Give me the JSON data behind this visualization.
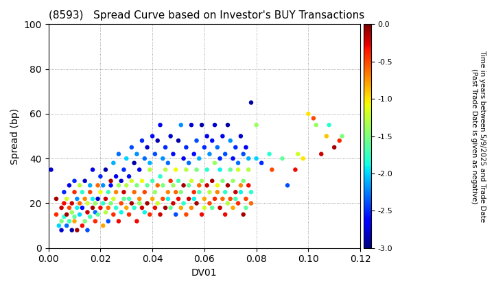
{
  "title": "(8593)   Spread Curve based on Investor's BUY Transactions",
  "xlabel": "DV01",
  "ylabel": "Spread (bp)",
  "xlim": [
    0.0,
    0.12
  ],
  "ylim": [
    0,
    100
  ],
  "xticks": [
    0.0,
    0.02,
    0.04,
    0.06,
    0.08,
    0.1,
    0.12
  ],
  "yticks": [
    0,
    20,
    40,
    60,
    80,
    100
  ],
  "colorbar_label": "Time in years between 5/9/2025 and Trade Date\n(Past Trade Date is given as negative)",
  "cmap": "jet",
  "vmin": -3.0,
  "vmax": 0.0,
  "colorbar_ticks": [
    0.0,
    -0.5,
    -1.0,
    -1.5,
    -2.0,
    -2.5,
    -3.0
  ],
  "marker_size": 22,
  "grid_style": "dotted",
  "grid_color": "#888888",
  "background_color": "#ffffff",
  "points": [
    [
      0.001,
      35,
      -2.8
    ],
    [
      0.003,
      22,
      -0.1
    ],
    [
      0.003,
      15,
      -0.4
    ],
    [
      0.004,
      10,
      -2.0
    ],
    [
      0.005,
      18,
      -0.2
    ],
    [
      0.005,
      12,
      -1.5
    ],
    [
      0.005,
      8,
      -2.8
    ],
    [
      0.006,
      20,
      -0.3
    ],
    [
      0.006,
      14,
      -1.8
    ],
    [
      0.006,
      25,
      -2.5
    ],
    [
      0.007,
      15,
      -0.1
    ],
    [
      0.007,
      22,
      -1.2
    ],
    [
      0.007,
      10,
      -2.3
    ],
    [
      0.008,
      18,
      -0.5
    ],
    [
      0.008,
      12,
      -1.7
    ],
    [
      0.008,
      28,
      -2.7
    ],
    [
      0.009,
      20,
      -0.2
    ],
    [
      0.009,
      16,
      -1.4
    ],
    [
      0.009,
      8,
      -2.9
    ],
    [
      0.01,
      25,
      -0.4
    ],
    [
      0.01,
      14,
      -1.6
    ],
    [
      0.01,
      30,
      -2.5
    ],
    [
      0.01,
      12,
      -0.8
    ],
    [
      0.011,
      18,
      -1.9
    ],
    [
      0.011,
      22,
      -2.2
    ],
    [
      0.011,
      8,
      -0.1
    ],
    [
      0.012,
      20,
      -0.6
    ],
    [
      0.012,
      15,
      -2.0
    ],
    [
      0.012,
      28,
      -1.3
    ],
    [
      0.013,
      10,
      -0.3
    ],
    [
      0.013,
      25,
      -1.8
    ],
    [
      0.013,
      18,
      -2.6
    ],
    [
      0.014,
      22,
      -0.7
    ],
    [
      0.014,
      12,
      -1.5
    ],
    [
      0.014,
      30,
      -2.8
    ],
    [
      0.015,
      16,
      -0.2
    ],
    [
      0.015,
      20,
      -1.2
    ],
    [
      0.015,
      8,
      -2.4
    ],
    [
      0.016,
      25,
      -0.5
    ],
    [
      0.016,
      14,
      -1.7
    ],
    [
      0.016,
      28,
      -2.1
    ],
    [
      0.017,
      18,
      -0.1
    ],
    [
      0.017,
      22,
      -1.9
    ],
    [
      0.017,
      35,
      -2.7
    ],
    [
      0.018,
      12,
      -0.4
    ],
    [
      0.018,
      20,
      -1.4
    ],
    [
      0.018,
      16,
      -2.3
    ],
    [
      0.019,
      28,
      -0.6
    ],
    [
      0.019,
      15,
      -1.6
    ],
    [
      0.019,
      22,
      -2.8
    ],
    [
      0.02,
      18,
      -0.3
    ],
    [
      0.02,
      25,
      -1.1
    ],
    [
      0.02,
      32,
      -2.5
    ],
    [
      0.021,
      10,
      -0.8
    ],
    [
      0.021,
      20,
      -1.8
    ],
    [
      0.021,
      28,
      -2.2
    ],
    [
      0.022,
      22,
      -0.2
    ],
    [
      0.022,
      16,
      -1.3
    ],
    [
      0.022,
      35,
      -2.9
    ],
    [
      0.023,
      18,
      -0.6
    ],
    [
      0.023,
      25,
      -1.7
    ],
    [
      0.023,
      12,
      -2.4
    ],
    [
      0.024,
      30,
      -0.1
    ],
    [
      0.024,
      20,
      -1.5
    ],
    [
      0.024,
      28,
      -2.6
    ],
    [
      0.025,
      15,
      -0.4
    ],
    [
      0.025,
      22,
      -1.2
    ],
    [
      0.025,
      38,
      -2.1
    ],
    [
      0.026,
      25,
      -0.7
    ],
    [
      0.026,
      18,
      -1.8
    ],
    [
      0.026,
      32,
      -2.7
    ],
    [
      0.027,
      12,
      -0.3
    ],
    [
      0.027,
      28,
      -1.4
    ],
    [
      0.027,
      42,
      -2.3
    ],
    [
      0.028,
      20,
      -0.5
    ],
    [
      0.028,
      16,
      -1.9
    ],
    [
      0.028,
      30,
      -2.8
    ],
    [
      0.029,
      25,
      -0.2
    ],
    [
      0.029,
      22,
      -1.6
    ],
    [
      0.029,
      35,
      -2.5
    ],
    [
      0.03,
      18,
      -0.8
    ],
    [
      0.03,
      28,
      -1.3
    ],
    [
      0.03,
      40,
      -2.0
    ],
    [
      0.031,
      15,
      -0.4
    ],
    [
      0.031,
      22,
      -1.7
    ],
    [
      0.031,
      32,
      -2.6
    ],
    [
      0.032,
      20,
      -0.1
    ],
    [
      0.032,
      30,
      -1.2
    ],
    [
      0.032,
      45,
      -2.4
    ],
    [
      0.033,
      25,
      -0.6
    ],
    [
      0.033,
      18,
      -1.8
    ],
    [
      0.033,
      38,
      -2.9
    ],
    [
      0.034,
      12,
      -0.3
    ],
    [
      0.034,
      28,
      -1.5
    ],
    [
      0.034,
      42,
      -2.2
    ],
    [
      0.035,
      22,
      -0.7
    ],
    [
      0.035,
      20,
      -1.4
    ],
    [
      0.035,
      35,
      -2.7
    ],
    [
      0.036,
      18,
      -0.2
    ],
    [
      0.036,
      30,
      -1.1
    ],
    [
      0.036,
      48,
      -2.5
    ],
    [
      0.037,
      25,
      -0.5
    ],
    [
      0.037,
      16,
      -1.9
    ],
    [
      0.037,
      40,
      -2.3
    ],
    [
      0.038,
      20,
      -0.1
    ],
    [
      0.038,
      28,
      -1.6
    ],
    [
      0.038,
      45,
      -2.8
    ],
    [
      0.039,
      15,
      -0.4
    ],
    [
      0.039,
      35,
      -1.3
    ],
    [
      0.039,
      38,
      -2.1
    ],
    [
      0.04,
      22,
      -0.8
    ],
    [
      0.04,
      30,
      -1.7
    ],
    [
      0.04,
      50,
      -2.6
    ],
    [
      0.041,
      18,
      -0.3
    ],
    [
      0.041,
      25,
      -1.4
    ],
    [
      0.041,
      42,
      -2.4
    ],
    [
      0.042,
      28,
      -0.6
    ],
    [
      0.042,
      20,
      -1.2
    ],
    [
      0.042,
      48,
      -2.9
    ],
    [
      0.043,
      15,
      -0.2
    ],
    [
      0.043,
      32,
      -1.8
    ],
    [
      0.043,
      55,
      -2.7
    ],
    [
      0.044,
      22,
      -0.5
    ],
    [
      0.044,
      28,
      -1.5
    ],
    [
      0.044,
      40,
      -2.2
    ],
    [
      0.045,
      18,
      -0.1
    ],
    [
      0.045,
      35,
      -1.3
    ],
    [
      0.045,
      45,
      -2.5
    ],
    [
      0.046,
      25,
      -0.7
    ],
    [
      0.046,
      22,
      -1.9
    ],
    [
      0.046,
      38,
      -2.3
    ],
    [
      0.047,
      30,
      -0.4
    ],
    [
      0.047,
      18,
      -1.6
    ],
    [
      0.047,
      50,
      -2.8
    ],
    [
      0.048,
      20,
      -0.2
    ],
    [
      0.048,
      28,
      -1.4
    ],
    [
      0.048,
      42,
      -2.6
    ],
    [
      0.049,
      25,
      -0.6
    ],
    [
      0.049,
      35,
      -1.1
    ],
    [
      0.049,
      15,
      -2.4
    ],
    [
      0.05,
      22,
      -0.3
    ],
    [
      0.05,
      30,
      -1.7
    ],
    [
      0.05,
      48,
      -2.9
    ],
    [
      0.051,
      18,
      -0.8
    ],
    [
      0.051,
      25,
      -1.5
    ],
    [
      0.051,
      55,
      -2.2
    ],
    [
      0.052,
      28,
      -0.1
    ],
    [
      0.052,
      20,
      -1.8
    ],
    [
      0.052,
      40,
      -2.7
    ],
    [
      0.053,
      15,
      -0.5
    ],
    [
      0.053,
      35,
      -1.3
    ],
    [
      0.053,
      45,
      -2.5
    ],
    [
      0.054,
      22,
      -0.2
    ],
    [
      0.054,
      28,
      -1.6
    ],
    [
      0.054,
      38,
      -2.3
    ],
    [
      0.055,
      18,
      -0.7
    ],
    [
      0.055,
      30,
      -1.2
    ],
    [
      0.055,
      55,
      -2.8
    ],
    [
      0.056,
      25,
      -0.4
    ],
    [
      0.056,
      22,
      -1.9
    ],
    [
      0.056,
      42,
      -2.6
    ],
    [
      0.057,
      20,
      -0.1
    ],
    [
      0.057,
      35,
      -1.5
    ],
    [
      0.057,
      48,
      -2.4
    ],
    [
      0.058,
      28,
      -0.6
    ],
    [
      0.058,
      25,
      -1.7
    ],
    [
      0.058,
      40,
      -2.1
    ],
    [
      0.059,
      15,
      -0.3
    ],
    [
      0.059,
      30,
      -1.4
    ],
    [
      0.059,
      55,
      -2.9
    ],
    [
      0.06,
      22,
      -0.8
    ],
    [
      0.06,
      18,
      -1.2
    ],
    [
      0.06,
      45,
      -2.5
    ],
    [
      0.061,
      28,
      -0.2
    ],
    [
      0.061,
      35,
      -1.8
    ],
    [
      0.061,
      50,
      -2.7
    ],
    [
      0.062,
      20,
      -0.5
    ],
    [
      0.062,
      25,
      -1.3
    ],
    [
      0.062,
      42,
      -2.2
    ],
    [
      0.063,
      30,
      -0.1
    ],
    [
      0.063,
      18,
      -1.6
    ],
    [
      0.063,
      48,
      -2.6
    ],
    [
      0.064,
      22,
      -0.4
    ],
    [
      0.064,
      38,
      -1.4
    ],
    [
      0.064,
      55,
      -2.8
    ],
    [
      0.065,
      25,
      -0.7
    ],
    [
      0.065,
      28,
      -1.1
    ],
    [
      0.065,
      45,
      -2.3
    ],
    [
      0.066,
      18,
      -0.2
    ],
    [
      0.066,
      35,
      -1.9
    ],
    [
      0.066,
      40,
      -2.5
    ],
    [
      0.067,
      22,
      -0.6
    ],
    [
      0.067,
      30,
      -1.5
    ],
    [
      0.067,
      50,
      -2.7
    ],
    [
      0.068,
      15,
      -0.3
    ],
    [
      0.068,
      25,
      -1.8
    ],
    [
      0.068,
      42,
      -2.4
    ],
    [
      0.069,
      28,
      -0.1
    ],
    [
      0.069,
      20,
      -1.3
    ],
    [
      0.069,
      55,
      -2.9
    ],
    [
      0.07,
      22,
      -0.5
    ],
    [
      0.07,
      35,
      -1.6
    ],
    [
      0.07,
      48,
      -2.2
    ],
    [
      0.071,
      18,
      -0.8
    ],
    [
      0.071,
      30,
      -1.4
    ],
    [
      0.071,
      40,
      -2.6
    ],
    [
      0.072,
      25,
      -0.2
    ],
    [
      0.072,
      22,
      -1.7
    ],
    [
      0.072,
      45,
      -2.5
    ],
    [
      0.073,
      20,
      -0.4
    ],
    [
      0.073,
      35,
      -1.2
    ],
    [
      0.073,
      38,
      -2.3
    ],
    [
      0.074,
      28,
      -0.7
    ],
    [
      0.074,
      25,
      -1.9
    ],
    [
      0.074,
      50,
      -2.8
    ],
    [
      0.075,
      15,
      -0.1
    ],
    [
      0.075,
      30,
      -1.5
    ],
    [
      0.075,
      42,
      -2.4
    ],
    [
      0.076,
      22,
      -0.5
    ],
    [
      0.076,
      18,
      -1.6
    ],
    [
      0.076,
      45,
      -2.7
    ],
    [
      0.077,
      28,
      -0.3
    ],
    [
      0.077,
      35,
      -1.3
    ],
    [
      0.077,
      40,
      -2.1
    ],
    [
      0.078,
      20,
      -0.6
    ],
    [
      0.078,
      25,
      -1.8
    ],
    [
      0.078,
      65,
      -2.9
    ],
    [
      0.08,
      40,
      -2.0
    ],
    [
      0.08,
      55,
      -1.4
    ],
    [
      0.082,
      38,
      -2.5
    ],
    [
      0.085,
      42,
      -1.8
    ],
    [
      0.086,
      35,
      -0.5
    ],
    [
      0.09,
      40,
      -1.6
    ],
    [
      0.092,
      28,
      -2.4
    ],
    [
      0.095,
      35,
      -0.3
    ],
    [
      0.096,
      42,
      -1.2
    ],
    [
      0.098,
      40,
      -1.0
    ],
    [
      0.1,
      60,
      -1.0
    ],
    [
      0.102,
      58,
      -0.5
    ],
    [
      0.103,
      55,
      -1.4
    ],
    [
      0.105,
      42,
      -0.2
    ],
    [
      0.107,
      50,
      -0.9
    ],
    [
      0.108,
      55,
      -1.8
    ],
    [
      0.11,
      45,
      -0.1
    ],
    [
      0.112,
      48,
      -0.4
    ],
    [
      0.113,
      50,
      -1.5
    ]
  ]
}
